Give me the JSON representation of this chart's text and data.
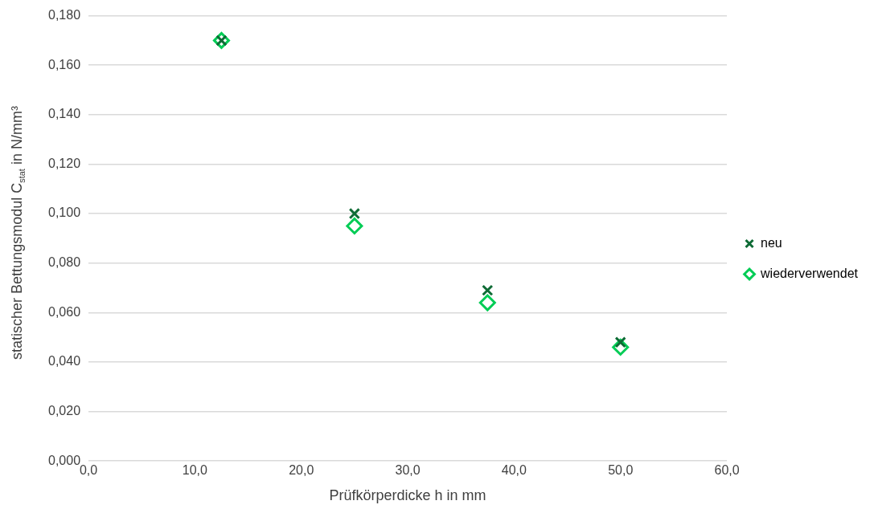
{
  "chart_data": {
    "type": "scatter",
    "xlabel": "Prüfkörperdicke h in mm",
    "ylabel": "statischer Bettungsmodul C$_{stat}$ in N/mm³",
    "x": [
      12.5,
      25.0,
      37.5,
      50.0
    ],
    "series": [
      {
        "name": "neu",
        "color": "#0e6b35",
        "marker": "cross",
        "values": [
          0.17,
          0.1,
          0.069,
          0.048
        ]
      },
      {
        "name": "wiederverwendet",
        "color": "#00cc55",
        "marker": "diamond",
        "values": [
          0.17,
          0.095,
          0.064,
          0.046
        ]
      }
    ],
    "xlim": [
      0,
      60
    ],
    "xticks": [
      {
        "value": 0,
        "label": "0,0"
      },
      {
        "value": 10,
        "label": "10,0"
      },
      {
        "value": 20,
        "label": "20,0"
      },
      {
        "value": 30,
        "label": "30,0"
      },
      {
        "value": 40,
        "label": "40,0"
      },
      {
        "value": 50,
        "label": "50,0"
      },
      {
        "value": 60,
        "label": "60,0"
      }
    ],
    "ylim": [
      0,
      0.18
    ],
    "yticks": [
      {
        "value": 0,
        "label": "0,000"
      },
      {
        "value": 0.02,
        "label": "0,020"
      },
      {
        "value": 0.04,
        "label": "0,040"
      },
      {
        "value": 0.06,
        "label": "0,060"
      },
      {
        "value": 0.08,
        "label": "0,080"
      },
      {
        "value": 0.1,
        "label": "0,100"
      },
      {
        "value": 0.12,
        "label": "0,120"
      },
      {
        "value": 0.14,
        "label": "0,140"
      },
      {
        "value": 0.16,
        "label": "0,160"
      },
      {
        "value": 0.18,
        "label": "0,180"
      }
    ],
    "grid": "y",
    "legend": "right"
  }
}
